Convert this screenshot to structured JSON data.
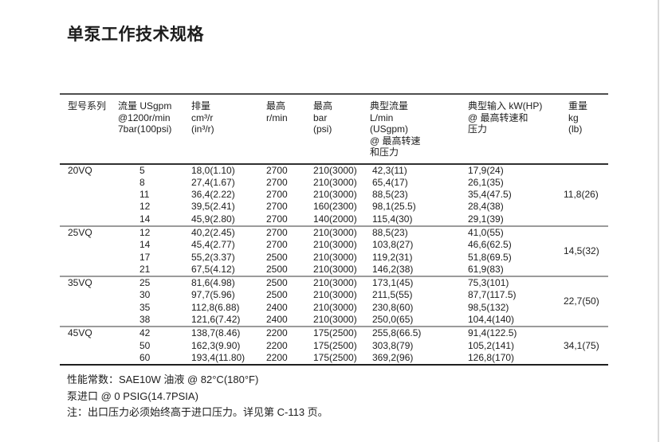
{
  "page": {
    "title": "单泵工作技术规格"
  },
  "table": {
    "headers": [
      {
        "lines": [
          "型号系列"
        ]
      },
      {
        "lines": [
          "流量 USgpm",
          "@1200r/min",
          "7bar(100psi)"
        ]
      },
      {
        "lines": [
          "排量",
          "cm³/r",
          "(in³/r)"
        ]
      },
      {
        "lines": [
          "最高",
          "r/min"
        ]
      },
      {
        "lines": [
          "最高",
          "bar",
          "(psi)"
        ]
      },
      {
        "lines": [
          "典型流量",
          "L/min",
          "(USgpm)",
          "@ 最高转速",
          "和压力"
        ]
      },
      {
        "lines": [
          "典型输入 kW(HP)",
          "@ 最高转速和",
          "压力"
        ]
      },
      {
        "lines": [
          "重量",
          "kg",
          "(lb)"
        ]
      }
    ],
    "sections": [
      {
        "model": "20VQ",
        "weight": "11,8(26)",
        "rows": [
          [
            "5",
            "18,0(1.10)",
            "2700",
            "210(3000)",
            "42,3(11)",
            "17,9(24)"
          ],
          [
            "8",
            "27,4(1.67)",
            "2700",
            "210(3000)",
            "65,4(17)",
            "26,1(35)"
          ],
          [
            "11",
            "36,4(2.22)",
            "2700",
            "210(3000)",
            "88,5(23)",
            "35,4(47.5)"
          ],
          [
            "12",
            "39,5(2.41)",
            "2700",
            "160(2300)",
            "98,1(25.5)",
            "28,4(38)"
          ],
          [
            "14",
            "45,9(2.80)",
            "2700",
            "140(2000)",
            "115,4(30)",
            "29,1(39)"
          ]
        ]
      },
      {
        "model": "25VQ",
        "weight": "14,5(32)",
        "rows": [
          [
            "12",
            "40,2(2.45)",
            "2700",
            "210(3000)",
            "88,5(23)",
            "41,0(55)"
          ],
          [
            "14",
            "45,4(2.77)",
            "2700",
            "210(3000)",
            "103,8(27)",
            "46,6(62.5)"
          ],
          [
            "17",
            "55,2(3.37)",
            "2500",
            "210(3000)",
            "119,2(31)",
            "51,8(69.5)"
          ],
          [
            "21",
            "67,5(4.12)",
            "2500",
            "210(3000)",
            "146,2(38)",
            "61,9(83)"
          ]
        ]
      },
      {
        "model": "35VQ",
        "weight": "22,7(50)",
        "rows": [
          [
            "25",
            "81,6(4.98)",
            "2500",
            "210(3000)",
            "173,1(45)",
            "75,3(101)"
          ],
          [
            "30",
            "97,7(5.96)",
            "2500",
            "210(3000)",
            "211,5(55)",
            "87,7(117.5)"
          ],
          [
            "35",
            "112,8(6.88)",
            "2400",
            "210(3000)",
            "230,8(60)",
            "98,5(132)"
          ],
          [
            "38",
            "121,6(7.42)",
            "2400",
            "210(3000)",
            "250,0(65)",
            "104,4(140)"
          ]
        ]
      },
      {
        "model": "45VQ",
        "weight": "34,1(75)",
        "rows": [
          [
            "42",
            "138,7(8.46)",
            "2200",
            "175(2500)",
            "255,8(66.5)",
            "91,4(122.5)"
          ],
          [
            "50",
            "162,3(9.90)",
            "2200",
            "175(2500)",
            "303,8(79)",
            "105,2(141)"
          ],
          [
            "60",
            "193,4(11.80)",
            "2200",
            "175(2500)",
            "369,2(96)",
            "126,8(170)"
          ]
        ]
      }
    ]
  },
  "notes": {
    "performance": "性能常数：SAE10W 油液 @ 82°C(180°F)",
    "inlet": "泵进口 @ 0 PSIG(14.7PSIA)",
    "outlet": "注：出口压力必须始终高于进口压力。详见第 C-113 页。"
  },
  "colors": {
    "text": "#1d1d1d",
    "rule_top": "#4f4f4f",
    "rule_header": "#303030",
    "rule_section": "#9b9b9b",
    "rule_bottom": "#1f1f1f",
    "page_edge": "#d9d9d9"
  }
}
